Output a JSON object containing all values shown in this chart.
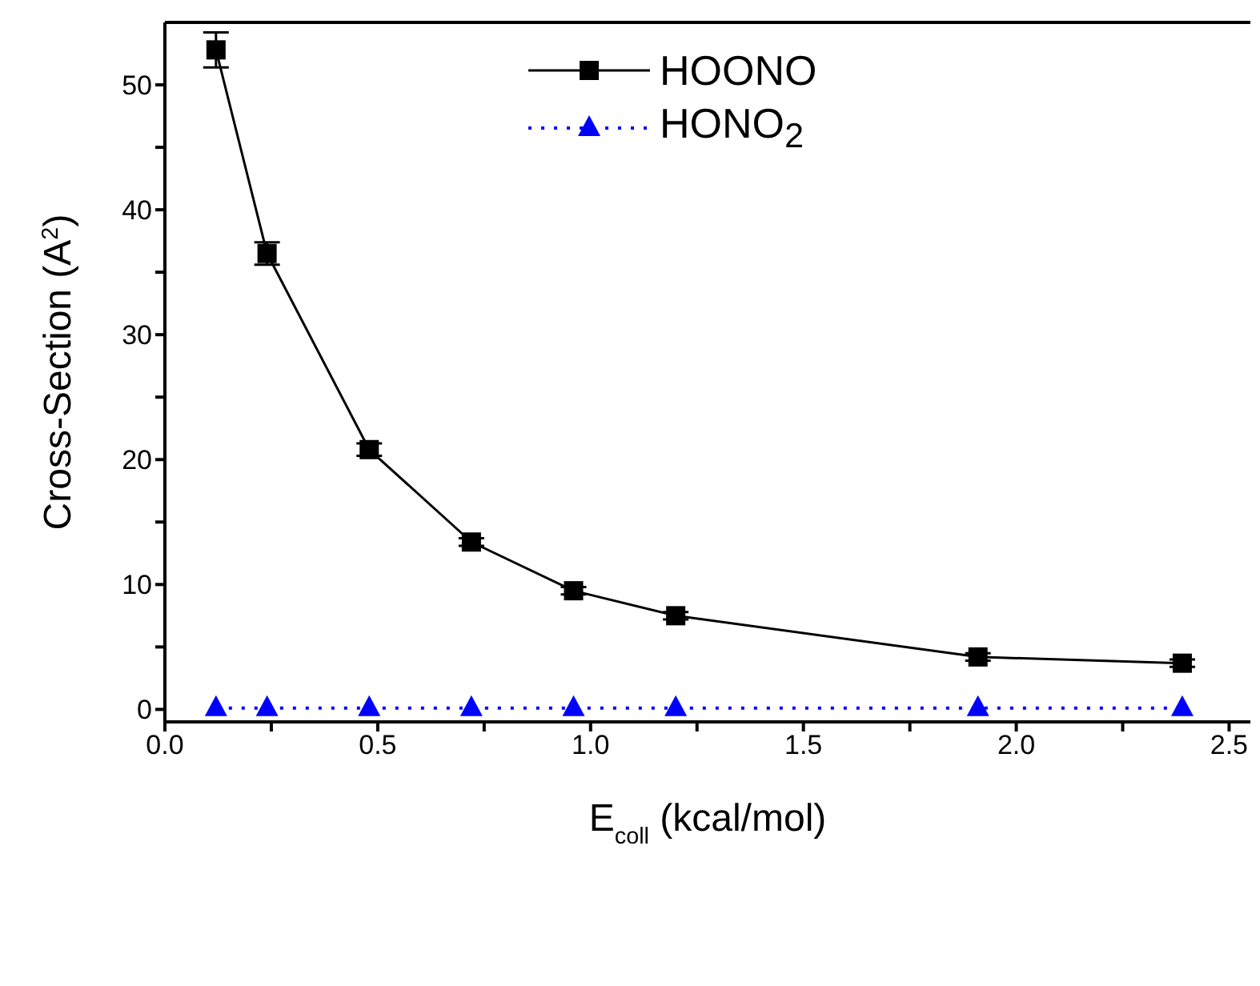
{
  "chart_data": {
    "type": "line",
    "xlabel": "E$_{coll}$ (kcal/mol)",
    "ylabel": "Cross-Section (A$^{2}$)",
    "x": [
      0.12,
      0.24,
      0.48,
      0.72,
      0.96,
      1.2,
      1.91,
      2.39
    ],
    "series": [
      {
        "name": "HOONO",
        "color": "#000000",
        "marker": "square",
        "line_style": "solid",
        "values": [
          52.8,
          36.5,
          20.8,
          13.4,
          9.5,
          7.5,
          4.2,
          3.7
        ],
        "errors": [
          1.4,
          0.9,
          0.5,
          0.3,
          0.3,
          0.3,
          0.3,
          0.3
        ]
      },
      {
        "name": "HONO$_{2}$",
        "color": "#0000ff",
        "marker": "triangle",
        "line_style": "dotted",
        "values": [
          0.1,
          0.1,
          0.1,
          0.1,
          0.1,
          0.1,
          0.1,
          0.1
        ]
      }
    ],
    "xlim": [
      0,
      2.55
    ],
    "xticks": [
      {
        "value": 0,
        "label": "0.0"
      },
      {
        "value": 0.25,
        "label": null
      },
      0.5,
      {
        "value": 0.75,
        "label": null
      },
      {
        "value": 1,
        "label": "1.0"
      },
      {
        "value": 1.25,
        "label": null
      },
      1.5,
      {
        "value": 1.75,
        "label": null
      },
      {
        "value": 2,
        "label": "2.0"
      },
      {
        "value": 2.25,
        "label": null
      },
      2.5
    ],
    "ylim": [
      -1,
      55
    ],
    "yticks": [
      0,
      {
        "value": 5,
        "label": null
      },
      10,
      {
        "value": 15,
        "label": null
      },
      20,
      {
        "value": 25,
        "label": null
      },
      30,
      {
        "value": 35,
        "label": null
      },
      40,
      {
        "value": 45,
        "label": null
      },
      50
    ],
    "legend": "top",
    "grid": false
  }
}
